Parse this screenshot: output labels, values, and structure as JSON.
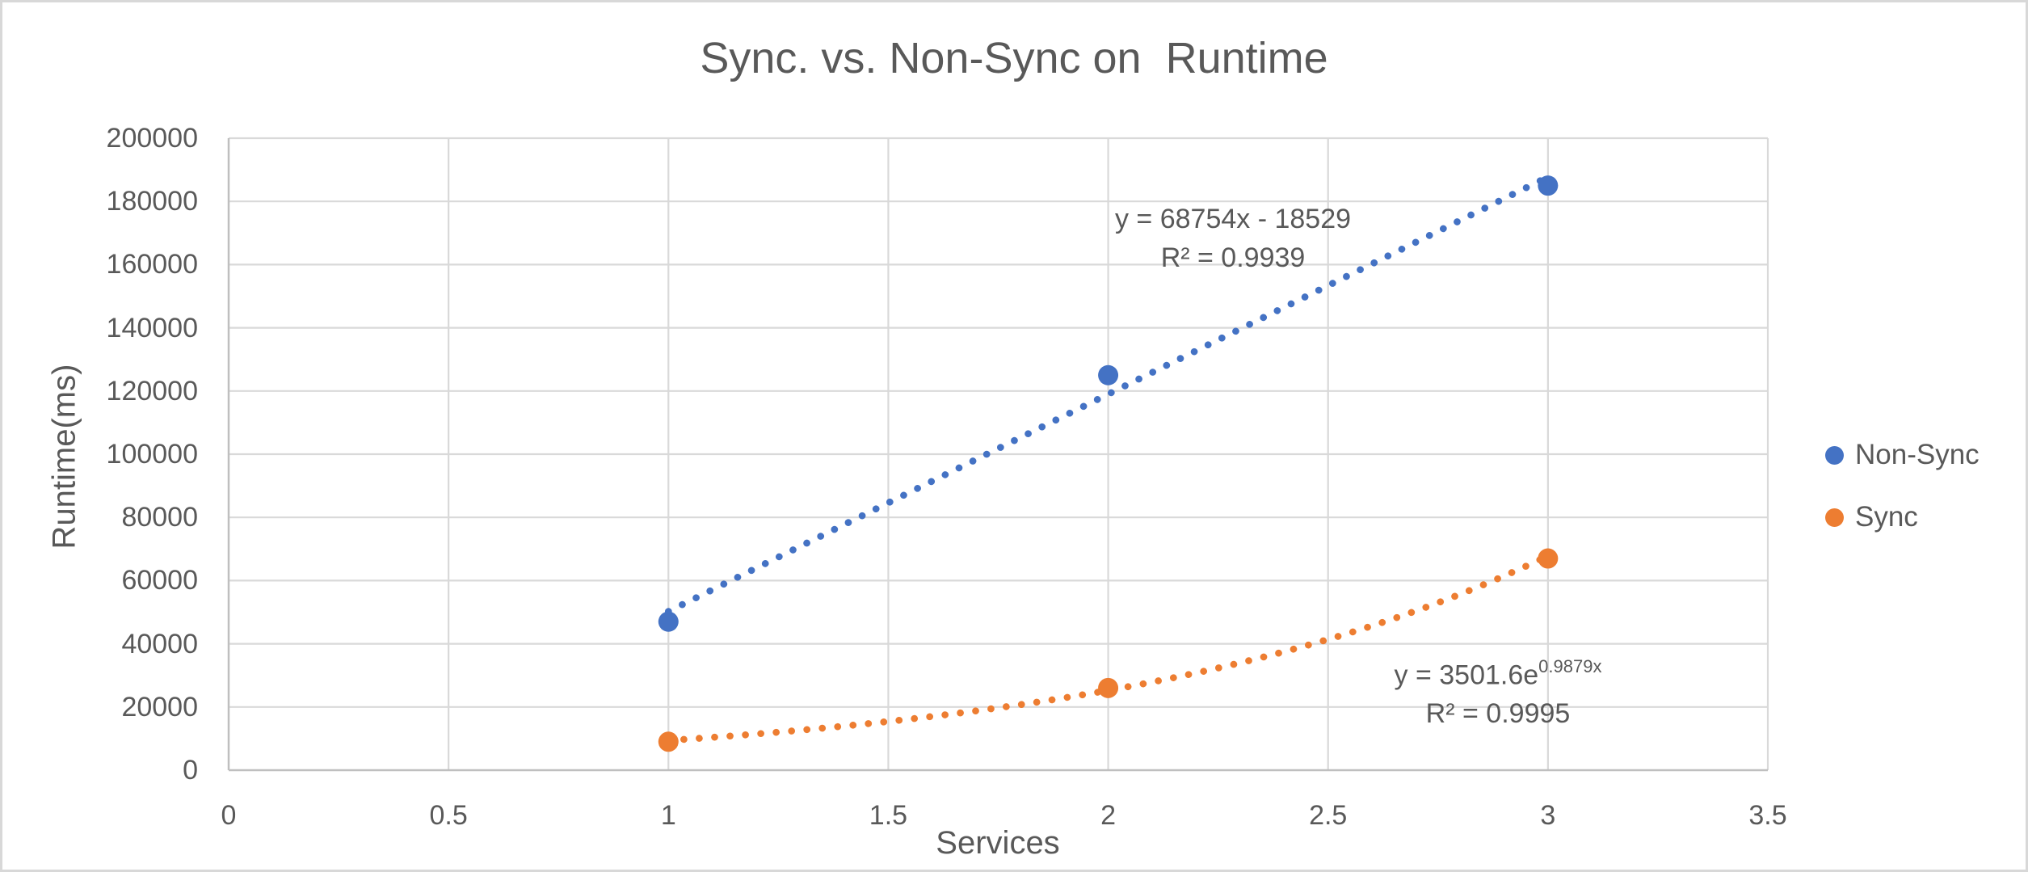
{
  "chart_data": {
    "type": "scatter",
    "title": "Sync. vs. Non-Sync on  Runtime",
    "xlabel": "Services",
    "ylabel": "Runtime(ms)",
    "xlim": [
      0,
      3.5
    ],
    "ylim": [
      0,
      200000
    ],
    "x_ticks": [
      0,
      0.5,
      1,
      1.5,
      2,
      2.5,
      3,
      3.5
    ],
    "x_tick_labels": [
      "0",
      "0.5",
      "1",
      "1.5",
      "2",
      "2.5",
      "3",
      "3.5"
    ],
    "y_ticks": [
      0,
      20000,
      40000,
      60000,
      80000,
      100000,
      120000,
      140000,
      160000,
      180000,
      200000
    ],
    "y_tick_labels": [
      "0",
      "20000",
      "40000",
      "60000",
      "80000",
      "100000",
      "120000",
      "140000",
      "160000",
      "180000",
      "200000"
    ],
    "grid": true,
    "legend_position": "right",
    "series": [
      {
        "name": "Non-Sync",
        "color": "#4472C4",
        "x": [
          1,
          2,
          3
        ],
        "y": [
          47000,
          125000,
          185000
        ],
        "trendline": {
          "kind": "linear",
          "slope": 68754,
          "intercept": -18529,
          "style": "dotted",
          "range": [
            1,
            3
          ],
          "equation": "y = 68754x - 18529",
          "r2": "R² = 0.9939"
        }
      },
      {
        "name": "Sync",
        "color": "#ED7D31",
        "x": [
          1,
          2,
          3
        ],
        "y": [
          9000,
          26000,
          67000
        ],
        "trendline": {
          "kind": "exponential",
          "coefficient": 3501.6,
          "exponent_coefficient": 0.9879,
          "style": "dotted",
          "range": [
            1,
            3
          ],
          "equation_base": "y = 3501.6e",
          "equation_superscript": "0.9879x",
          "r2": "R² = 0.9995"
        }
      }
    ],
    "colors": {
      "text": "#595959",
      "gridline": "#D9D9D9",
      "axis_line": "#BFBFBF",
      "background": "#FFFFFF",
      "frame_border": "#D8D8D8"
    }
  }
}
